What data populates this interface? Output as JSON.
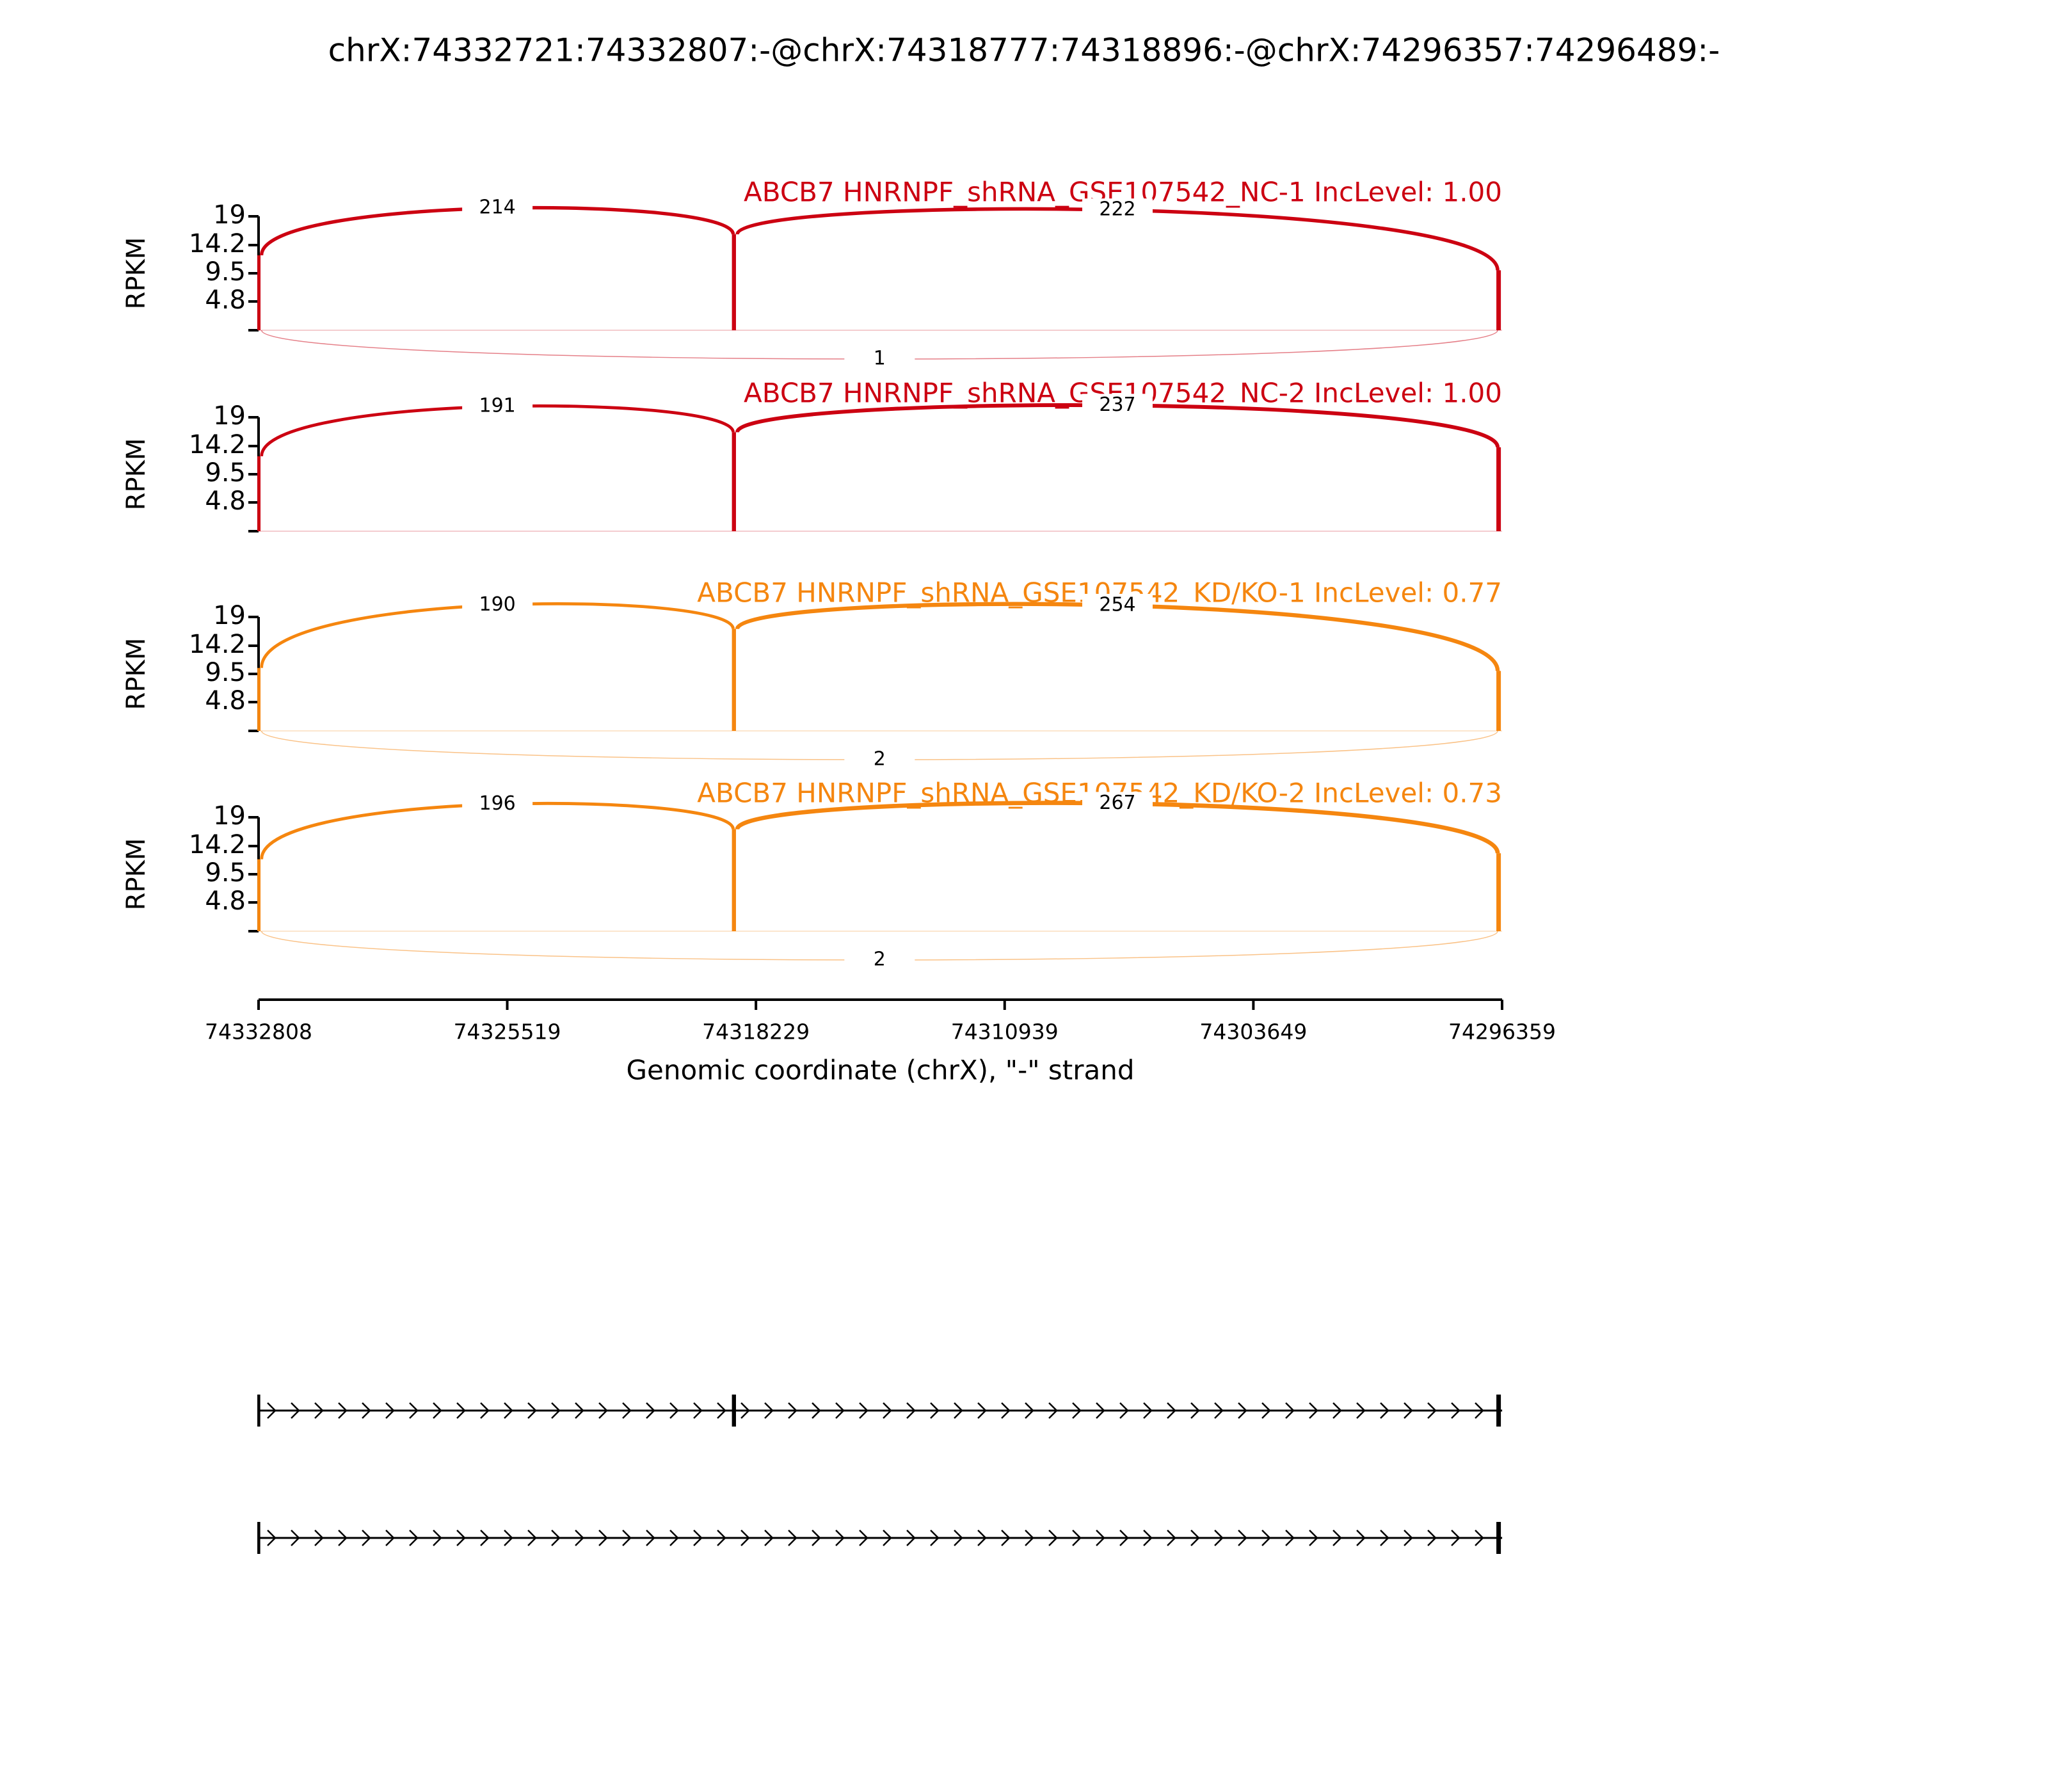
{
  "chart_data": {
    "type": "sashimi",
    "title": "chrX:74332721:74332807:-@chrX:74318777:74318896:-@chrX:74296357:74296489:-",
    "xlabel": "Genomic coordinate (chrX), \"-\" strand",
    "ylabel": "RPKM",
    "xlim": [
      74332808,
      74296359
    ],
    "xticks": [
      74332808,
      74325519,
      74318229,
      74310939,
      74303649,
      74296359
    ],
    "ylim": [
      0,
      19
    ],
    "yticks": [
      4.8,
      9.5,
      14.2,
      19
    ],
    "exons": [
      [
        74332721,
        74332807
      ],
      [
        74318777,
        74318896
      ],
      [
        74296357,
        74296489
      ]
    ],
    "panels": [
      {
        "label": "ABCB7 HNRNPF_shRNA_GSE107542_NC-1 IncLevel: 1.00",
        "color": "#cc0011",
        "coverage": [
          12.5,
          16,
          10
        ],
        "junctions": [
          {
            "start": 74332721,
            "end": 74318896,
            "count": 214
          },
          {
            "start": 74318777,
            "end": 74296489,
            "count": 222
          },
          {
            "start": 74332721,
            "end": 74296489,
            "count": 1
          }
        ]
      },
      {
        "label": "ABCB7 HNRNPF_shRNA_GSE107542_NC-2 IncLevel: 1.00",
        "color": "#cc0011",
        "coverage": [
          12.5,
          16.5,
          14
        ],
        "junctions": [
          {
            "start": 74332721,
            "end": 74318896,
            "count": 191
          },
          {
            "start": 74318777,
            "end": 74296489,
            "count": 237
          }
        ]
      },
      {
        "label": "ABCB7 HNRNPF_shRNA_GSE107542_KD/KO-1 IncLevel: 0.77",
        "color": "#f5860f",
        "coverage": [
          10.5,
          17,
          10
        ],
        "junctions": [
          {
            "start": 74332721,
            "end": 74318896,
            "count": 190
          },
          {
            "start": 74318777,
            "end": 74296489,
            "count": 254
          },
          {
            "start": 74332721,
            "end": 74296489,
            "count": 2
          }
        ]
      },
      {
        "label": "ABCB7 HNRNPF_shRNA_GSE107542_KD/KO-2 IncLevel: 0.73",
        "color": "#f5860f",
        "coverage": [
          12,
          17,
          13
        ],
        "junctions": [
          {
            "start": 74332721,
            "end": 74318896,
            "count": 196
          },
          {
            "start": 74318777,
            "end": 74296489,
            "count": 267
          },
          {
            "start": 74332721,
            "end": 74296489,
            "count": 2
          }
        ]
      }
    ],
    "transcripts": [
      [
        [
          74332721,
          74332807
        ],
        [
          74318777,
          74318896
        ],
        [
          74296357,
          74296489
        ]
      ],
      [
        [
          74332721,
          74332807
        ],
        [
          74296357,
          74296489
        ]
      ]
    ]
  }
}
